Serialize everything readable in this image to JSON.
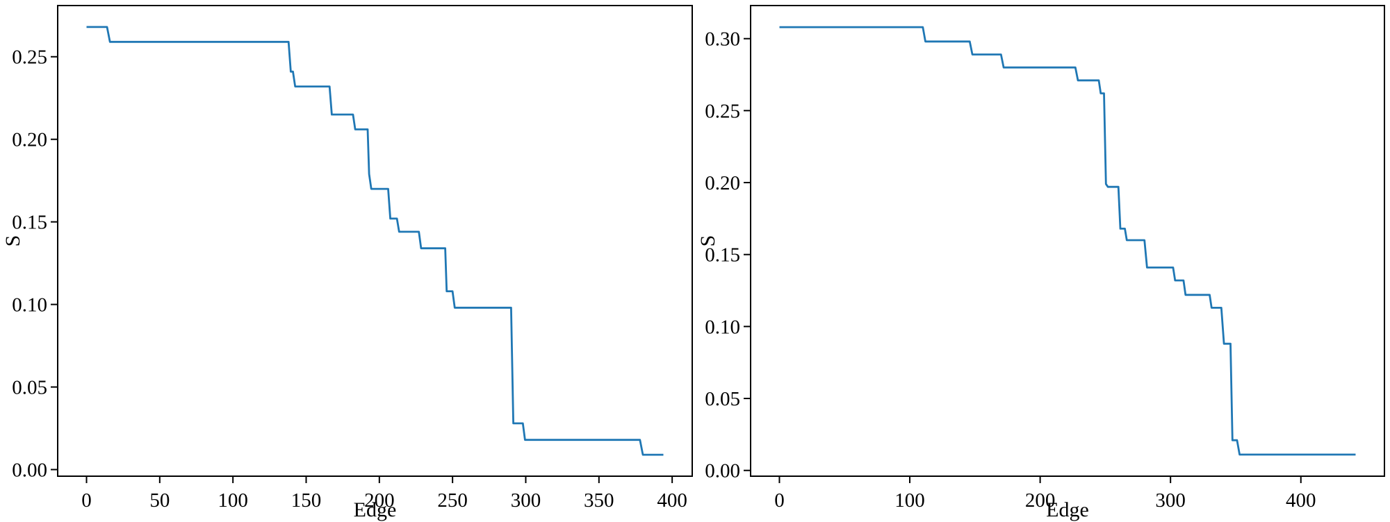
{
  "figure": {
    "background": "#ffffff",
    "text_color": "#000000"
  },
  "chart_data": [
    {
      "type": "line",
      "panel": "left",
      "title": "",
      "xlabel": "Edge",
      "ylabel": "S",
      "line_color": "#1f77b4",
      "grid": false,
      "legend": "none",
      "xlim": [
        -19.7,
        413.7
      ],
      "ylim": [
        -0.004,
        0.281
      ],
      "xticks": [
        0,
        50,
        100,
        150,
        200,
        250,
        300,
        350,
        400
      ],
      "xtick_labels": [
        "0",
        "50",
        "100",
        "150",
        "200",
        "250",
        "300",
        "350",
        "400"
      ],
      "yticks": [
        0.0,
        0.05,
        0.1,
        0.15,
        0.2,
        0.25
      ],
      "ytick_labels": [
        "0.00",
        "0.05",
        "0.10",
        "0.15",
        "0.20",
        "0.25"
      ],
      "series": [
        {
          "name": "S",
          "points": [
            [
              0,
              0.268
            ],
            [
              14,
              0.268
            ],
            [
              16,
              0.259
            ],
            [
              138,
              0.259
            ],
            [
              139.5,
              0.241
            ],
            [
              141,
              0.241
            ],
            [
              142.5,
              0.232
            ],
            [
              166,
              0.232
            ],
            [
              167.5,
              0.215
            ],
            [
              182,
              0.215
            ],
            [
              183.5,
              0.206
            ],
            [
              192,
              0.206
            ],
            [
              193,
              0.179
            ],
            [
              194.5,
              0.17
            ],
            [
              206,
              0.17
            ],
            [
              207.5,
              0.152
            ],
            [
              212,
              0.152
            ],
            [
              213.5,
              0.144
            ],
            [
              227,
              0.144
            ],
            [
              228.5,
              0.134
            ],
            [
              245,
              0.134
            ],
            [
              246,
              0.108
            ],
            [
              250,
              0.108
            ],
            [
              251.5,
              0.098
            ],
            [
              290,
              0.098
            ],
            [
              291.5,
              0.028
            ],
            [
              298,
              0.028
            ],
            [
              299.5,
              0.018
            ],
            [
              378,
              0.018
            ],
            [
              380,
              0.009
            ],
            [
              394,
              0.009
            ]
          ]
        }
      ]
    },
    {
      "type": "line",
      "panel": "right",
      "title": "",
      "xlabel": "Edge",
      "ylabel": "S",
      "line_color": "#1f77b4",
      "grid": false,
      "legend": "none",
      "xlim": [
        -22.1,
        464.1
      ],
      "ylim": [
        -0.004,
        0.323
      ],
      "xticks": [
        0,
        100,
        200,
        300,
        400
      ],
      "xtick_labels": [
        "0",
        "100",
        "200",
        "300",
        "400"
      ],
      "yticks": [
        0.0,
        0.05,
        0.1,
        0.15,
        0.2,
        0.25,
        0.3
      ],
      "ytick_labels": [
        "0.00",
        "0.05",
        "0.10",
        "0.15",
        "0.20",
        "0.25",
        "0.30"
      ],
      "series": [
        {
          "name": "S",
          "points": [
            [
              0,
              0.308
            ],
            [
              110,
              0.308
            ],
            [
              112,
              0.298
            ],
            [
              146,
              0.298
            ],
            [
              148,
              0.289
            ],
            [
              170,
              0.289
            ],
            [
              172,
              0.28
            ],
            [
              227,
              0.28
            ],
            [
              229,
              0.271
            ],
            [
              245,
              0.271
            ],
            [
              246.5,
              0.262
            ],
            [
              249,
              0.262
            ],
            [
              250.5,
              0.199
            ],
            [
              252,
              0.197
            ],
            [
              260,
              0.197
            ],
            [
              261.5,
              0.168
            ],
            [
              265,
              0.168
            ],
            [
              266.5,
              0.16
            ],
            [
              280,
              0.16
            ],
            [
              282,
              0.141
            ],
            [
              302,
              0.141
            ],
            [
              303.5,
              0.132
            ],
            [
              310,
              0.132
            ],
            [
              311.5,
              0.122
            ],
            [
              330,
              0.122
            ],
            [
              331.5,
              0.113
            ],
            [
              339,
              0.113
            ],
            [
              341,
              0.088
            ],
            [
              346,
              0.088
            ],
            [
              347.5,
              0.021
            ],
            [
              351,
              0.021
            ],
            [
              353,
              0.011
            ],
            [
              442,
              0.011
            ]
          ]
        }
      ]
    }
  ]
}
